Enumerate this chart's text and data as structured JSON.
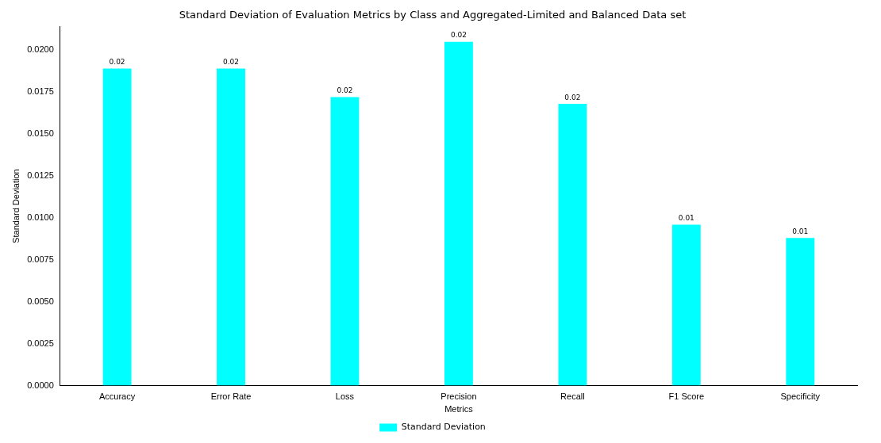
{
  "chart_data": {
    "type": "bar",
    "title": "Standard Deviation of Evaluation Metrics by Class and Aggregated-Limited and Balanced Data set",
    "xlabel": "Metrics",
    "ylabel": "Standard Deviation",
    "categories": [
      "Accuracy",
      "Error Rate",
      "Loss",
      "Precision",
      "Recall",
      "F1 Score",
      "Specificity"
    ],
    "series": [
      {
        "name": "Standard Deviation",
        "color": "#00ffff",
        "values": [
          0.0189,
          0.0189,
          0.0172,
          0.0205,
          0.0168,
          0.0096,
          0.0088
        ],
        "value_labels": [
          "0.02",
          "0.02",
          "0.02",
          "0.02",
          "0.02",
          "0.01",
          "0.01"
        ]
      }
    ],
    "ylim": [
      0,
      0.0214
    ],
    "yticks": [
      {
        "value": 0,
        "label": "0.0000"
      },
      {
        "value": 0.0025,
        "label": "0.0025"
      },
      {
        "value": 0.005,
        "label": "0.0050"
      },
      {
        "value": 0.0075,
        "label": "0.0075"
      },
      {
        "value": 0.01,
        "label": "0.0100"
      },
      {
        "value": 0.0125,
        "label": "0.0125"
      },
      {
        "value": 0.015,
        "label": "0.0150"
      },
      {
        "value": 0.0175,
        "label": "0.0175"
      },
      {
        "value": 0.02,
        "label": "0.0200"
      }
    ],
    "grid": false,
    "legend": "bottom"
  }
}
